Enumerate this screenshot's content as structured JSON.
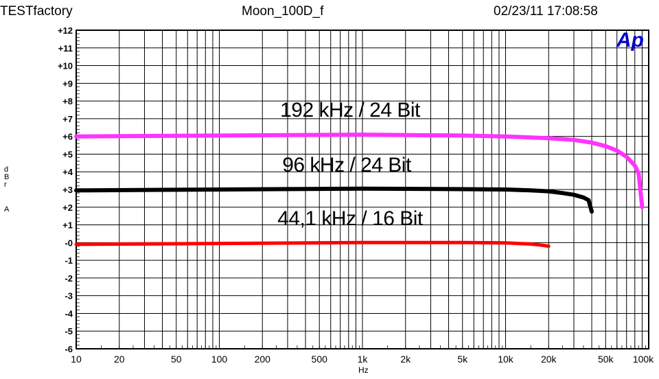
{
  "header": {
    "left": "TESTfactory",
    "center": "Moon_100D_f",
    "right": "02/23/11 17:08:58"
  },
  "logo_text": "Ap",
  "colors": {
    "series_192": "#ff33ff",
    "series_96": "#000000",
    "series_44": "#ff0000",
    "logo": "#0000cc"
  },
  "chart_data": {
    "type": "line",
    "x_scale": "log",
    "grid": true,
    "xlabel": "Hz",
    "ylabel_lines": [
      "d",
      "B",
      "r",
      "A"
    ],
    "xlim": [
      10,
      100000
    ],
    "ylim": [
      -6,
      12
    ],
    "x_ticks": [
      10,
      20,
      50,
      100,
      200,
      500,
      1000,
      2000,
      5000,
      10000,
      20000,
      50000,
      100000
    ],
    "x_tick_labels": [
      "10",
      "20",
      "50",
      "100",
      "200",
      "500",
      "1k",
      "2k",
      "5k",
      "10k",
      "20k",
      "50k",
      "100k"
    ],
    "y_ticks": [
      -6,
      -5,
      -4,
      -3,
      -2,
      -1,
      0,
      1,
      2,
      3,
      4,
      5,
      6,
      7,
      8,
      9,
      10,
      11,
      12
    ],
    "y_tick_labels": [
      "-6",
      "-5",
      "-4",
      "-3",
      "-2",
      "-1",
      "-0",
      "+1",
      "+2",
      "+3",
      "+4",
      "+5",
      "+6",
      "+7",
      "+8",
      "+9",
      "+10",
      "+11",
      "+12"
    ],
    "annotations": [
      "192 kHz / 24 Bit",
      "96 kHz / 24 Bit",
      "44,1 kHz / 16 Bit"
    ],
    "series": [
      {
        "color_key": "series_192",
        "x": [
          10,
          100,
          1000,
          5000,
          10000,
          20000,
          30000,
          40000,
          50000,
          60000,
          70000,
          80000,
          85000,
          90000
        ],
        "y": [
          6.0,
          6.05,
          6.1,
          6.05,
          6.0,
          5.9,
          5.8,
          5.65,
          5.45,
          5.2,
          4.85,
          4.35,
          3.9,
          2.0
        ]
      },
      {
        "color_key": "series_96",
        "x": [
          10,
          100,
          1000,
          5000,
          10000,
          15000,
          20000,
          25000,
          30000,
          35000,
          38000,
          40000
        ],
        "y": [
          2.95,
          3.0,
          3.05,
          3.02,
          3.0,
          2.95,
          2.9,
          2.8,
          2.7,
          2.55,
          2.4,
          1.75
        ]
      },
      {
        "color_key": "series_44",
        "x": [
          10,
          100,
          1000,
          5000,
          10000,
          15000,
          18000,
          20000
        ],
        "y": [
          -0.1,
          -0.05,
          0.0,
          0.0,
          -0.02,
          -0.08,
          -0.15,
          -0.2
        ]
      }
    ]
  }
}
